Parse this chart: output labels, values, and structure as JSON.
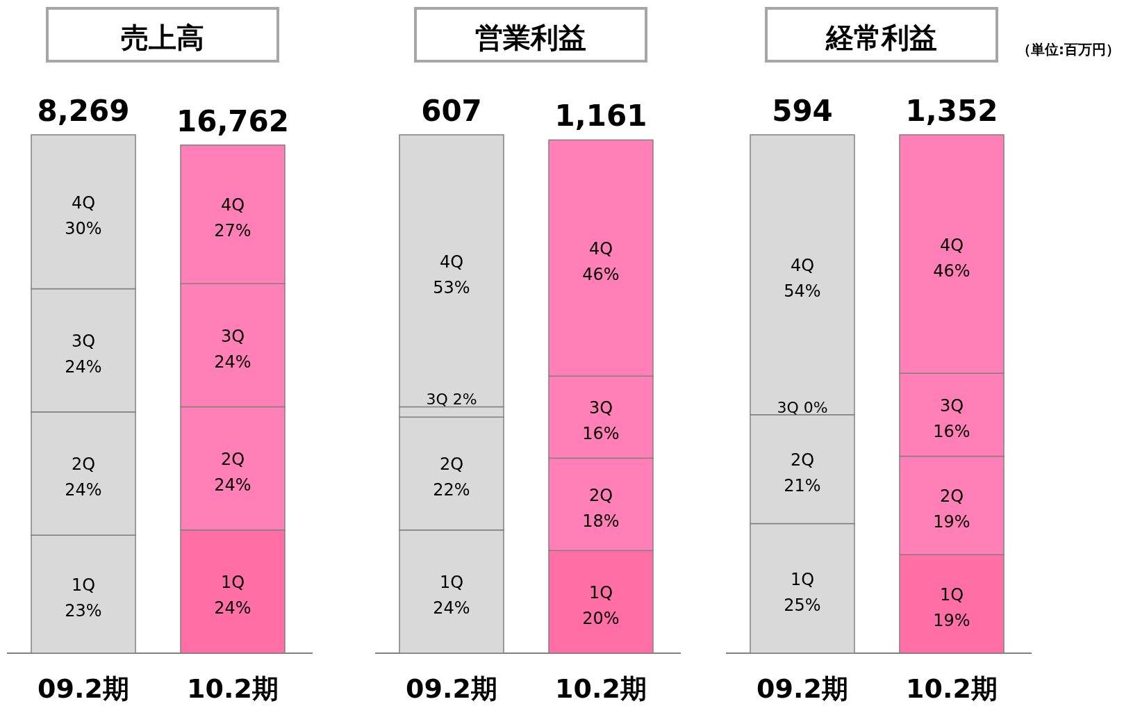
{
  "chart_data": [
    {
      "type": "bar",
      "stacked": true,
      "title": "売上高",
      "categories": [
        "09.2期",
        "10.2期"
      ],
      "annotations": [
        {
          "text": "8,269",
          "x": "09.2期",
          "y": 101
        },
        {
          "text": "16,762",
          "x": "10.2期",
          "y": 99
        }
      ],
      "series": [
        {
          "name": "1Q",
          "colors": [
            "#d9d9d9",
            "#ff6fa6"
          ],
          "values": [
            23,
            24
          ],
          "value_labels": [
            "23%",
            "24%"
          ]
        },
        {
          "name": "2Q",
          "colors": [
            "#d9d9d9",
            "#ff7fb6"
          ],
          "values": [
            24,
            24
          ],
          "value_labels": [
            "24%",
            "24%"
          ]
        },
        {
          "name": "3Q",
          "colors": [
            "#d9d9d9",
            "#ff7fb6"
          ],
          "values": [
            24,
            24
          ],
          "value_labels": [
            "24%",
            "24%"
          ]
        },
        {
          "name": "4Q",
          "colors": [
            "#d9d9d9",
            "#ff7fb6"
          ],
          "values": [
            30,
            27
          ],
          "value_labels": [
            "30%",
            "27%"
          ]
        }
      ]
    },
    {
      "type": "bar",
      "stacked": true,
      "title": "営業利益",
      "categories": [
        "09.2期",
        "10.2期"
      ],
      "annotations": [
        {
          "text": "607",
          "x": "09.2期",
          "y": 101
        },
        {
          "text": "1,161",
          "x": "10.2期",
          "y": 100
        }
      ],
      "series": [
        {
          "name": "1Q",
          "colors": [
            "#d9d9d9",
            "#ff6fa6"
          ],
          "values": [
            24,
            20
          ],
          "value_labels": [
            "24%",
            "20%"
          ]
        },
        {
          "name": "2Q",
          "colors": [
            "#d9d9d9",
            "#ff7fb6"
          ],
          "values": [
            22,
            18
          ],
          "value_labels": [
            "22%",
            "18%"
          ]
        },
        {
          "name": "3Q",
          "colors": [
            "#d9d9d9",
            "#ff7fb6"
          ],
          "values": [
            2,
            16
          ],
          "value_labels": [
            "2%",
            "16%"
          ]
        },
        {
          "name": "4Q",
          "colors": [
            "#d9d9d9",
            "#ff7fb6"
          ],
          "values": [
            53,
            46
          ],
          "value_labels": [
            "53%",
            "46%"
          ]
        }
      ]
    },
    {
      "type": "bar",
      "stacked": true,
      "title": "経常利益",
      "categories": [
        "09.2期",
        "10.2期"
      ],
      "annotations": [
        {
          "text": "594",
          "x": "09.2期",
          "y": 100
        },
        {
          "text": "1,352",
          "x": "10.2期",
          "y": 100
        },
        "（単位:百万円）"
      ],
      "series": [
        {
          "name": "1Q",
          "colors": [
            "#d9d9d9",
            "#ff6fa6"
          ],
          "values": [
            25,
            19
          ],
          "value_labels": [
            "25%",
            "19%"
          ]
        },
        {
          "name": "2Q",
          "colors": [
            "#d9d9d9",
            "#ff7fb6"
          ],
          "values": [
            21,
            19
          ],
          "value_labels": [
            "21%",
            "19%"
          ]
        },
        {
          "name": "3Q",
          "colors": [
            "#d9d9d9",
            "#ff7fb6"
          ],
          "values": [
            0,
            16
          ],
          "value_labels": [
            "0%",
            "16%"
          ]
        },
        {
          "name": "4Q",
          "colors": [
            "#d9d9d9",
            "#ff7fb6"
          ],
          "values": [
            54,
            46
          ],
          "value_labels": [
            "54%",
            "46%"
          ]
        }
      ]
    }
  ]
}
